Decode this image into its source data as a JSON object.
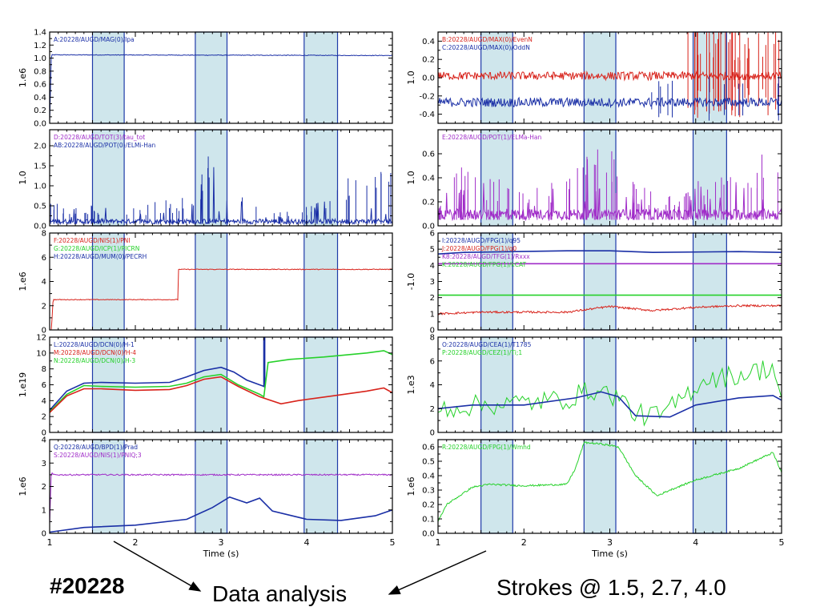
{
  "colors": {
    "blue": "#1a2fa6",
    "red": "#d8231b",
    "green": "#26d12a",
    "purple": "#a02cc8",
    "band": "#cfe6ec",
    "band_edge": "#1f3aa8",
    "frame": "#000000"
  },
  "captions": {
    "shot": "#20228",
    "analysis": "Data analysis",
    "strokes": "Strokes @ 1.5, 2.7, 4.0"
  },
  "chart_data": [
    {
      "type": "line",
      "column": "left",
      "ylabel": "1.e6",
      "ylim": [
        0.0,
        1.4
      ],
      "yticks": [
        "0.0",
        "0.2",
        "0.4",
        "0.6",
        "0.8",
        "1.0",
        "1.2",
        "1.4"
      ],
      "ytick_values": [
        0.0,
        0.2,
        0.4,
        0.6,
        0.8,
        1.0,
        1.2,
        1.4
      ],
      "xlim": [
        1,
        5
      ],
      "xticks": [
        "1",
        "2",
        "3",
        "4",
        "5"
      ],
      "xtick_values": [
        1,
        2,
        3,
        4,
        5
      ],
      "xlabel": "",
      "bands": [
        [
          1.5,
          1.87
        ],
        [
          2.7,
          3.07
        ],
        [
          3.97,
          4.36
        ]
      ],
      "legend": [
        {
          "text": "A:20228/AUGD/MAG(0)/Ipa",
          "color": "#1a2fa6"
        }
      ],
      "series": [
        {
          "color": "#1a2fa6",
          "style": "noise",
          "noise": 0.005,
          "x": [
            1,
            1.02,
            1.05,
            5
          ],
          "y": [
            0.0,
            1.05,
            1.05,
            1.04
          ]
        }
      ]
    },
    {
      "type": "line",
      "column": "left",
      "ylabel": "1.0",
      "ylim": [
        0.0,
        2.4
      ],
      "yticks": [
        "0.0",
        "0.5",
        "1.0",
        "1.5",
        "2.0"
      ],
      "ytick_values": [
        0.0,
        0.5,
        1.0,
        1.5,
        2.0
      ],
      "xlim": [
        1,
        5
      ],
      "xticks": [
        "1",
        "2",
        "3",
        "4",
        "5"
      ],
      "xtick_values": [
        1,
        2,
        3,
        4,
        5
      ],
      "xlabel": "",
      "bands": [
        [
          1.5,
          1.87
        ],
        [
          2.7,
          3.07
        ],
        [
          3.97,
          4.36
        ]
      ],
      "legend": [
        {
          "text": "D:20228/AUGD/TOT(3)/tau_tot",
          "color": "#a02cc8"
        },
        {
          "text": "AB:20228/AUGD/POT(0)/ELMi-Han",
          "color": "#1a2fa6"
        }
      ],
      "series": [
        {
          "color": "#1a2fa6",
          "style": "spiky",
          "base": 0.05,
          "noise": 0.12,
          "spike_count": 70,
          "x": [
            1,
            2,
            2.7,
            2.9,
            3.1,
            3.5,
            4.0,
            4.5,
            5
          ],
          "y": [
            0.35,
            0.3,
            0.5,
            1.5,
            0.6,
            0.2,
            0.3,
            0.8,
            1.1
          ]
        }
      ]
    },
    {
      "type": "line",
      "column": "left",
      "ylabel": "1.e6",
      "ylim": [
        0,
        8
      ],
      "yticks": [
        "0",
        "2",
        "4",
        "6",
        "8"
      ],
      "ytick_values": [
        0,
        2,
        4,
        6,
        8
      ],
      "xlim": [
        1,
        5
      ],
      "xticks": [
        "1",
        "2",
        "3",
        "4",
        "5"
      ],
      "xtick_values": [
        1,
        2,
        3,
        4,
        5
      ],
      "xlabel": "",
      "bands": [
        [
          1.5,
          1.87
        ],
        [
          2.7,
          3.07
        ],
        [
          3.97,
          4.36
        ]
      ],
      "legend": [
        {
          "text": "F:20228/AUGD/NIS(1)/PNI",
          "color": "#d8231b"
        },
        {
          "text": "G:20228/AUGD/ICP(1)/PICRN",
          "color": "#26d12a"
        },
        {
          "text": "H:20228/AUGD/MUM(0)/PECRH",
          "color": "#1a2fa6"
        }
      ],
      "series": [
        {
          "color": "#d8231b",
          "style": "noise",
          "noise": 0.03,
          "x": [
            1,
            1.02,
            1.04,
            2.5,
            2.5,
            5
          ],
          "y": [
            0,
            0,
            2.5,
            2.5,
            5.0,
            5.0
          ]
        }
      ]
    },
    {
      "type": "line",
      "column": "left",
      "ylabel": "1.e19",
      "ylim": [
        0,
        12
      ],
      "yticks": [
        "0",
        "2",
        "4",
        "6",
        "8",
        "10",
        "12"
      ],
      "ytick_values": [
        0,
        2,
        4,
        6,
        8,
        10,
        12
      ],
      "xlim": [
        1,
        5
      ],
      "xticks": [
        "1",
        "2",
        "3",
        "4",
        "5"
      ],
      "xtick_values": [
        1,
        2,
        3,
        4,
        5
      ],
      "xlabel": "",
      "bands": [
        [
          1.5,
          1.87
        ],
        [
          2.7,
          3.07
        ],
        [
          3.97,
          4.36
        ]
      ],
      "legend": [
        {
          "text": "L:20228/AUGD/DCN(0)/H-1",
          "color": "#1a2fa6"
        },
        {
          "text": "M:20228/AUGD/DCN(0)/H-4",
          "color": "#d8231b"
        },
        {
          "text": "N:20228/AUGD/DCN(0)/H-3",
          "color": "#26d12a"
        }
      ],
      "series": [
        {
          "color": "#1a2fa6",
          "style": "line",
          "x": [
            1,
            1.2,
            1.4,
            1.6,
            2.0,
            2.4,
            2.6,
            2.8,
            3.0,
            3.15,
            3.3,
            3.5,
            3.5,
            3.51,
            3.51
          ],
          "y": [
            2.8,
            5.2,
            6.2,
            6.3,
            6.2,
            6.3,
            7.0,
            7.8,
            8.2,
            7.6,
            6.6,
            5.8,
            12.3,
            12.3,
            5.6
          ]
        },
        {
          "color": "#26d12a",
          "style": "line",
          "x": [
            1,
            1.2,
            1.4,
            1.6,
            2.0,
            2.4,
            2.6,
            2.8,
            3.0,
            3.2,
            3.45,
            3.5,
            3.55,
            3.8,
            4.2,
            4.7,
            4.9,
            5
          ],
          "y": [
            2.6,
            4.8,
            5.9,
            5.8,
            5.7,
            5.8,
            6.2,
            7.0,
            7.3,
            6.0,
            4.8,
            4.5,
            8.8,
            9.2,
            9.5,
            10.0,
            10.3,
            9.8
          ]
        },
        {
          "color": "#d8231b",
          "style": "line",
          "x": [
            1,
            1.2,
            1.4,
            1.6,
            2.0,
            2.4,
            2.6,
            2.8,
            3.0,
            3.2,
            3.45,
            3.7,
            3.9,
            4.3,
            4.7,
            4.9,
            5
          ],
          "y": [
            2.5,
            4.6,
            5.5,
            5.5,
            5.3,
            5.4,
            5.9,
            6.7,
            7.0,
            5.8,
            4.5,
            3.6,
            4.0,
            4.6,
            5.2,
            5.6,
            5.0
          ]
        }
      ]
    },
    {
      "type": "line",
      "column": "left",
      "ylabel": "1.e6",
      "ylim": [
        0,
        4
      ],
      "yticks": [
        "0",
        "1",
        "2",
        "3",
        "4"
      ],
      "ytick_values": [
        0,
        1,
        2,
        3,
        4
      ],
      "xlim": [
        1,
        5
      ],
      "xticks": [
        "1",
        "2",
        "3",
        "4",
        "5"
      ],
      "xtick_values": [
        1,
        2,
        3,
        4,
        5
      ],
      "xlabel": "Time (s)",
      "bands": [
        [
          1.5,
          1.87
        ],
        [
          2.7,
          3.07
        ],
        [
          3.97,
          4.36
        ]
      ],
      "legend": [
        {
          "text": "Q:20228/AUGD/BPD(1)/Prad",
          "color": "#1a2fa6"
        },
        {
          "text": "S:20228/AUGD/NIS(1)/PNIQ;3",
          "color": "#a02cc8"
        }
      ],
      "series": [
        {
          "color": "#a02cc8",
          "style": "noise",
          "noise": 0.03,
          "x": [
            1,
            1.02,
            1.04,
            5
          ],
          "y": [
            0.4,
            2.6,
            2.5,
            2.5
          ]
        },
        {
          "color": "#1a2fa6",
          "style": "line",
          "x": [
            1,
            1.4,
            2.0,
            2.6,
            2.9,
            3.1,
            3.3,
            3.45,
            3.6,
            4.0,
            4.4,
            4.8,
            5
          ],
          "y": [
            0.05,
            0.25,
            0.35,
            0.6,
            1.1,
            1.55,
            1.3,
            1.5,
            0.95,
            0.6,
            0.55,
            0.75,
            1.0
          ]
        }
      ]
    },
    {
      "type": "line",
      "column": "right",
      "ylabel": "1.0",
      "ylim": [
        -0.5,
        0.5
      ],
      "yticks": [
        "-0.4",
        "-0.2",
        "0.0",
        "0.2",
        "0.4"
      ],
      "ytick_values": [
        -0.4,
        -0.2,
        0.0,
        0.2,
        0.4
      ],
      "xlim": [
        1,
        5
      ],
      "xticks": [
        "1",
        "2",
        "3",
        "4",
        "5"
      ],
      "xtick_values": [
        1,
        2,
        3,
        4,
        5
      ],
      "xlabel": "",
      "bands": [
        [
          1.5,
          1.87
        ],
        [
          2.7,
          3.07
        ],
        [
          3.97,
          4.36
        ]
      ],
      "legend": [
        {
          "text": "B:20228/AUGD/MAX(0)/EvenN",
          "color": "#d8231b"
        },
        {
          "text": "C:20228/AUGD/MAX(0)/OddN",
          "color": "#1a2fa6"
        }
      ],
      "series": [
        {
          "color": "#d8231b",
          "style": "noise",
          "noise": 0.045,
          "spike_count": 40,
          "spike_start": 3.8,
          "spike_max": 0.55,
          "x": [
            1,
            5
          ],
          "y": [
            0.02,
            0.02
          ]
        },
        {
          "color": "#1a2fa6",
          "style": "noise",
          "noise": 0.05,
          "spike_count": 12,
          "spike_start": 3.4,
          "spike_max": 0.25,
          "x": [
            1,
            5
          ],
          "y": [
            -0.27,
            -0.27
          ]
        }
      ]
    },
    {
      "type": "line",
      "column": "right",
      "ylabel": "1.0",
      "ylim": [
        0.0,
        0.8
      ],
      "yticks": [
        "0.0",
        "0.2",
        "0.4",
        "0.6"
      ],
      "ytick_values": [
        0.0,
        0.2,
        0.4,
        0.6
      ],
      "xlim": [
        1,
        5
      ],
      "xticks": [
        "1",
        "2",
        "3",
        "4",
        "5"
      ],
      "xtick_values": [
        1,
        2,
        3,
        4,
        5
      ],
      "xlabel": "",
      "bands": [
        [
          1.5,
          1.87
        ],
        [
          2.7,
          3.07
        ],
        [
          3.97,
          4.36
        ]
      ],
      "legend": [
        {
          "text": "E:20228/AUGD/POT(1)/ELMa-Han",
          "color": "#a02cc8"
        }
      ],
      "series": [
        {
          "color": "#a02cc8",
          "style": "spiky",
          "base": 0.05,
          "noise": 0.09,
          "spike_count": 80,
          "x": [
            1,
            1.2,
            2.0,
            2.5,
            2.7,
            3.0,
            3.3,
            3.8,
            4.1,
            4.6,
            5
          ],
          "y": [
            0.05,
            0.3,
            0.2,
            0.25,
            0.45,
            0.4,
            0.2,
            0.12,
            0.25,
            0.35,
            0.4
          ]
        }
      ]
    },
    {
      "type": "line",
      "column": "right",
      "ylabel": "-1.0",
      "ylim": [
        0,
        6
      ],
      "yticks": [
        "0",
        "1",
        "2",
        "3",
        "4",
        "5",
        "6"
      ],
      "ytick_values": [
        0,
        1,
        2,
        3,
        4,
        5,
        6
      ],
      "xlim": [
        1,
        5
      ],
      "xticks": [
        "1",
        "2",
        "3",
        "4",
        "5"
      ],
      "xtick_values": [
        1,
        2,
        3,
        4,
        5
      ],
      "xlabel": "",
      "bands": [
        [
          1.5,
          1.87
        ],
        [
          2.7,
          3.07
        ],
        [
          3.97,
          4.36
        ]
      ],
      "legend": [
        {
          "text": "I:20228/AUGD/FPG(1)/q95",
          "color": "#1a2fa6"
        },
        {
          "text": "J:20228/AUGD/FPG(1)/q0",
          "color": "#d8231b"
        },
        {
          "text": "K8:20228/AUGD/TFG(1)/Rxxx",
          "color": "#a02cc8"
        },
        {
          "text": "K:20228/AUGD/FPG(1)/kCAT",
          "color": "#26d12a"
        }
      ],
      "series": [
        {
          "color": "#1a2fa6",
          "style": "line",
          "x": [
            1,
            1.3,
            2.5,
            3.0,
            3.5,
            4.5,
            5
          ],
          "y": [
            4.7,
            4.8,
            4.9,
            4.9,
            4.8,
            4.85,
            4.8
          ]
        },
        {
          "color": "#a02cc8",
          "style": "line",
          "x": [
            1,
            5
          ],
          "y": [
            4.1,
            4.1
          ]
        },
        {
          "color": "#26d12a",
          "style": "line",
          "x": [
            1,
            5
          ],
          "y": [
            2.15,
            2.15
          ]
        },
        {
          "color": "#d8231b",
          "style": "noise",
          "noise": 0.06,
          "x": [
            1,
            1.5,
            2.5,
            3.0,
            3.5,
            4.0,
            4.5,
            5
          ],
          "y": [
            1.0,
            1.1,
            1.1,
            1.45,
            1.2,
            1.4,
            1.5,
            1.5
          ]
        }
      ]
    },
    {
      "type": "line",
      "column": "right",
      "ylabel": "1.e3",
      "ylim": [
        0,
        8
      ],
      "yticks": [
        "0",
        "2",
        "4",
        "6",
        "8"
      ],
      "ytick_values": [
        0,
        2,
        4,
        6,
        8
      ],
      "xlim": [
        1,
        5
      ],
      "xticks": [
        "1",
        "2",
        "3",
        "4",
        "5"
      ],
      "xtick_values": [
        1,
        2,
        3,
        4,
        5
      ],
      "xlabel": "",
      "bands": [
        [
          1.5,
          1.87
        ],
        [
          2.7,
          3.07
        ],
        [
          3.97,
          4.36
        ]
      ],
      "legend": [
        {
          "text": "O:20228/AUGD/CEA(1)/T1785",
          "color": "#1a2fa6"
        },
        {
          "text": "P:20228/AUGD/CEZ(1)/Ti;1",
          "color": "#26d12a"
        }
      ],
      "series": [
        {
          "color": "#26d12a",
          "style": "jagged",
          "noise": 0.9,
          "x": [
            1,
            1.5,
            2.0,
            2.5,
            2.8,
            3.1,
            3.3,
            3.6,
            3.8,
            4.1,
            4.5,
            4.9,
            5
          ],
          "y": [
            2.0,
            2.3,
            2.5,
            2.8,
            3.6,
            3.0,
            1.5,
            1.4,
            2.6,
            4.5,
            4.8,
            5.5,
            3.0
          ]
        },
        {
          "color": "#1a2fa6",
          "style": "line",
          "x": [
            1,
            1.4,
            2.0,
            2.6,
            2.9,
            3.1,
            3.3,
            3.7,
            4.0,
            4.5,
            4.9,
            5
          ],
          "y": [
            2.0,
            2.3,
            2.3,
            2.9,
            3.4,
            3.0,
            1.4,
            1.3,
            2.3,
            2.9,
            3.1,
            2.7
          ]
        }
      ]
    },
    {
      "type": "line",
      "column": "right",
      "ylabel": "1.e6",
      "ylim": [
        0.0,
        0.65
      ],
      "yticks": [
        "0.0",
        "0.1",
        "0.2",
        "0.3",
        "0.4",
        "0.5",
        "0.6"
      ],
      "ytick_values": [
        0.0,
        0.1,
        0.2,
        0.3,
        0.4,
        0.5,
        0.6
      ],
      "xlim": [
        1,
        5
      ],
      "xticks": [
        "1",
        "2",
        "3",
        "4",
        "5"
      ],
      "xtick_values": [
        1,
        2,
        3,
        4,
        5
      ],
      "xlabel": "Time (s)",
      "bands": [
        [
          1.5,
          1.87
        ],
        [
          2.7,
          3.07
        ],
        [
          3.97,
          4.36
        ]
      ],
      "legend": [
        {
          "text": "R:20228/AUGD/FPG(1)/Wmhd",
          "color": "#26d12a"
        }
      ],
      "series": [
        {
          "color": "#26d12a",
          "style": "noise",
          "noise": 0.006,
          "x": [
            1,
            1.1,
            1.4,
            1.6,
            2.0,
            2.5,
            2.6,
            2.7,
            2.9,
            3.1,
            3.3,
            3.55,
            3.7,
            4.0,
            4.5,
            4.9,
            5
          ],
          "y": [
            0.08,
            0.2,
            0.32,
            0.34,
            0.33,
            0.34,
            0.45,
            0.63,
            0.62,
            0.6,
            0.4,
            0.26,
            0.3,
            0.37,
            0.45,
            0.56,
            0.42
          ]
        }
      ]
    }
  ]
}
